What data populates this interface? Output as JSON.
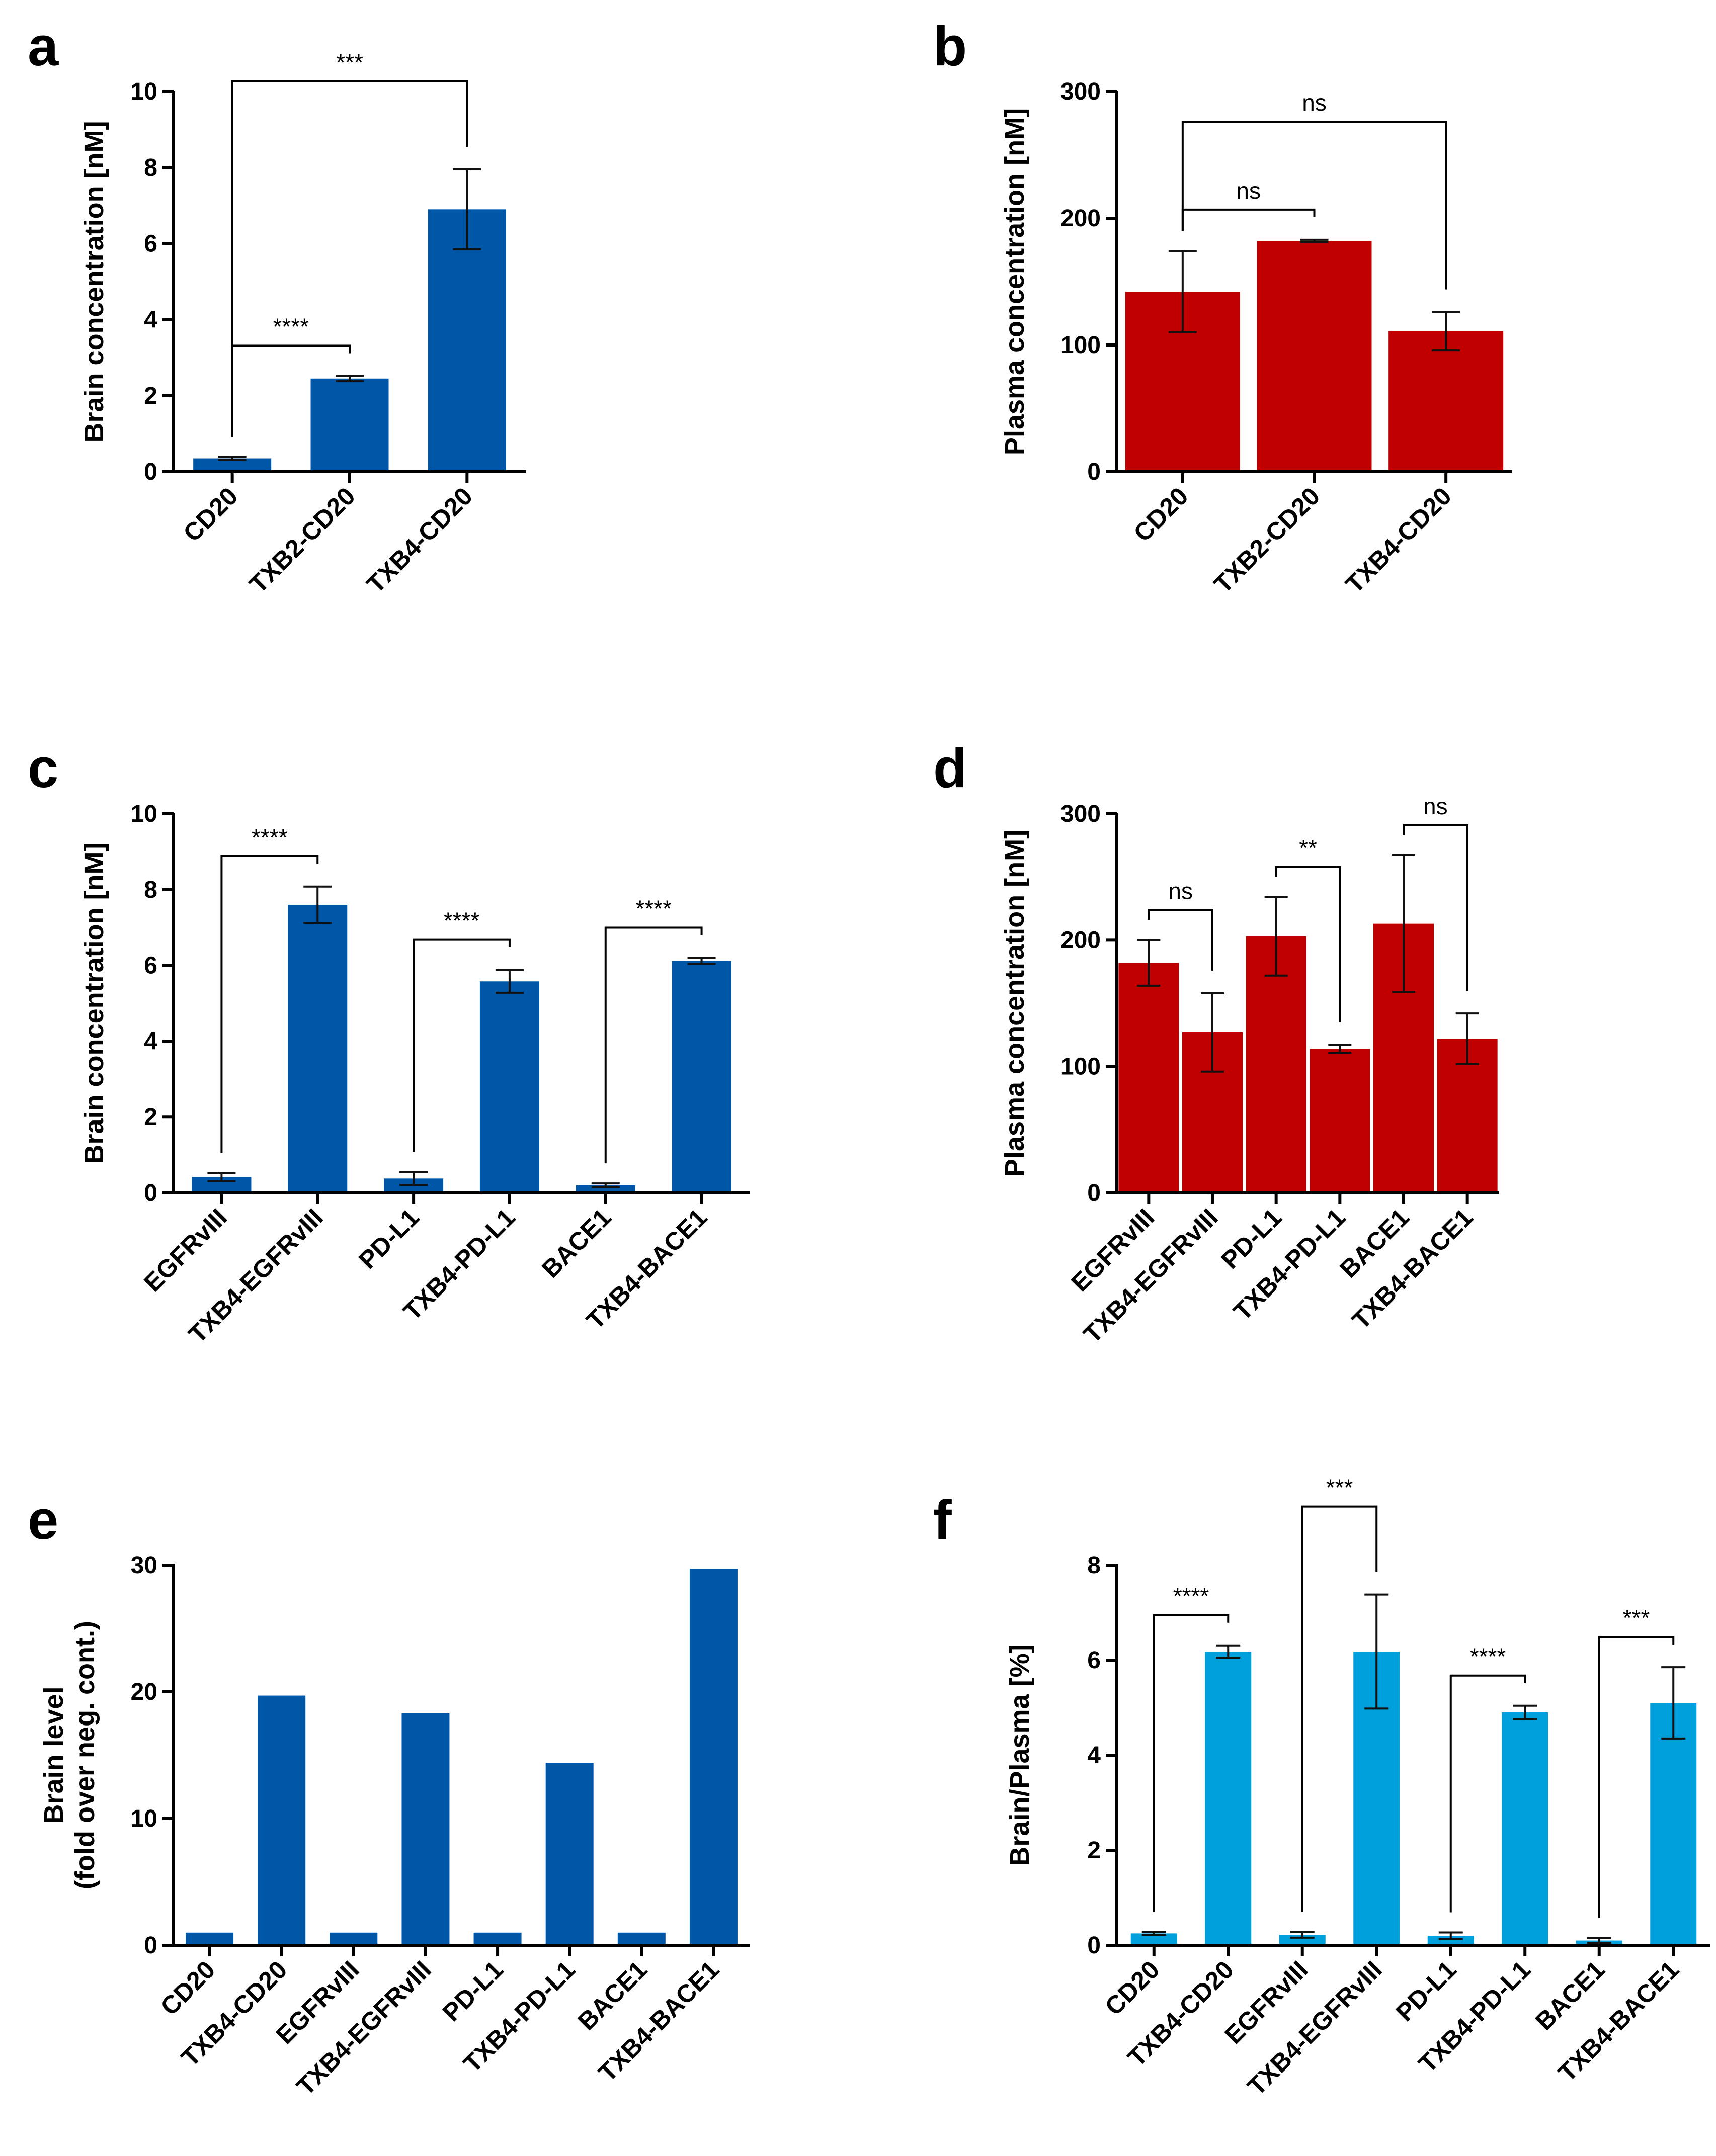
{
  "figure": {
    "colors": {
      "blue": "#0057A8",
      "red": "#C00000",
      "lightblue": "#00A0DC",
      "axis": "#000000"
    }
  },
  "chart_data": [
    {
      "panel": "a",
      "type": "bar",
      "color": "blue",
      "ylabel": "Brain concentration [nM]",
      "ylabel_lines": [
        "Brain concentration [nM]"
      ],
      "ylim": [
        0,
        10
      ],
      "yticks": [
        0,
        2,
        4,
        6,
        8,
        10
      ],
      "categories": [
        "CD20",
        "TXB2-CD20",
        "TXB4-CD20"
      ],
      "values": [
        0.35,
        2.45,
        6.9
      ],
      "errors": [
        0.04,
        0.07,
        1.05
      ],
      "significance": [
        {
          "from": 0,
          "to": 1,
          "label": "****",
          "level": 0
        },
        {
          "from": 0,
          "to": 2,
          "label": "***",
          "level": 1
        }
      ]
    },
    {
      "panel": "b",
      "type": "bar",
      "color": "red",
      "ylabel": "Plasma concentration [nM]",
      "ylabel_lines": [
        "Plasma concentration [nM]"
      ],
      "ylim": [
        0,
        300
      ],
      "yticks": [
        0,
        100,
        200,
        300
      ],
      "categories": [
        "CD20",
        "TXB2-CD20",
        "TXB4-CD20"
      ],
      "values": [
        142,
        182,
        111
      ],
      "errors": [
        32,
        1,
        15
      ],
      "significance": [
        {
          "from": 0,
          "to": 1,
          "label": "ns",
          "level": 0
        },
        {
          "from": 0,
          "to": 2,
          "label": "ns",
          "level": 1
        }
      ]
    },
    {
      "panel": "c",
      "type": "bar",
      "color": "blue",
      "ylabel": "Brain concentration [nM]",
      "ylabel_lines": [
        "Brain concentration [nM]"
      ],
      "ylim": [
        0,
        10
      ],
      "yticks": [
        0,
        2,
        4,
        6,
        8,
        10
      ],
      "categories": [
        "EGFRvIII",
        "TXB4-EGFRvIII",
        "PD-L1",
        "TXB4-PD-L1",
        "BACE1",
        "TXB4-BACE1"
      ],
      "values": [
        0.42,
        7.6,
        0.38,
        5.58,
        0.2,
        6.12
      ],
      "errors": [
        0.11,
        0.48,
        0.17,
        0.3,
        0.05,
        0.08
      ],
      "significance": [
        {
          "from": 0,
          "to": 1,
          "label": "****",
          "level": 0
        },
        {
          "from": 2,
          "to": 3,
          "label": "****",
          "level": 0
        },
        {
          "from": 4,
          "to": 5,
          "label": "****",
          "level": 0
        }
      ]
    },
    {
      "panel": "d",
      "type": "bar",
      "color": "red",
      "ylabel": "Plasma concentration [nM]",
      "ylabel_lines": [
        "Plasma concentration [nM]"
      ],
      "ylim": [
        0,
        300
      ],
      "yticks": [
        0,
        100,
        200,
        300
      ],
      "categories": [
        "EGFRvIII",
        "TXB4-EGFRvIII",
        "PD-L1",
        "TXB4-PD-L1",
        "BACE1",
        "TXB4-BACE1"
      ],
      "values": [
        182,
        127,
        203,
        114,
        213,
        122
      ],
      "errors": [
        18,
        31,
        31,
        3,
        54,
        20
      ],
      "significance": [
        {
          "from": 0,
          "to": 1,
          "label": "ns",
          "level": 0
        },
        {
          "from": 2,
          "to": 3,
          "label": "**",
          "level": 0
        },
        {
          "from": 4,
          "to": 5,
          "label": "ns",
          "level": 0
        }
      ]
    },
    {
      "panel": "e",
      "type": "bar",
      "color": "blue",
      "ylabel": "Brain level (fold over neg. cont.)",
      "ylabel_lines": [
        "Brain level",
        "(fold over neg. cont.)"
      ],
      "ylim": [
        0,
        30
      ],
      "yticks": [
        0,
        10,
        20,
        30
      ],
      "categories": [
        "CD20",
        "TXB4-CD20",
        "EGFRvIII",
        "TXB4-EGFRvIII",
        "PD-L1",
        "TXB4-PD-L1",
        "BACE1",
        "TXB4-BACE1"
      ],
      "values": [
        1,
        19.7,
        1,
        18.3,
        1,
        14.4,
        1,
        29.7
      ],
      "errors": [],
      "significance": []
    },
    {
      "panel": "f",
      "type": "bar",
      "color": "lightblue",
      "ylabel": "Brain/Plasma [%]",
      "ylabel_lines": [
        "Brain/Plasma [%]"
      ],
      "ylim": [
        0,
        8
      ],
      "yticks": [
        0,
        2,
        4,
        6,
        8
      ],
      "categories": [
        "CD20",
        "TXB4-CD20",
        "EGFRvIII",
        "TXB4-EGFRvIII",
        "PD-L1",
        "TXB4-PD-L1",
        "BACE1",
        "TXB4-BACE1"
      ],
      "values": [
        0.25,
        6.18,
        0.22,
        6.18,
        0.2,
        4.9,
        0.1,
        5.1
      ],
      "errors": [
        0.03,
        0.13,
        0.06,
        1.2,
        0.07,
        0.14,
        0.05,
        0.75
      ],
      "significance": [
        {
          "from": 0,
          "to": 1,
          "label": "****",
          "level": 0
        },
        {
          "from": 2,
          "to": 3,
          "label": "***",
          "level": 1
        },
        {
          "from": 4,
          "to": 5,
          "label": "****",
          "level": 0
        },
        {
          "from": 6,
          "to": 7,
          "label": "***",
          "level": 0
        }
      ]
    }
  ]
}
